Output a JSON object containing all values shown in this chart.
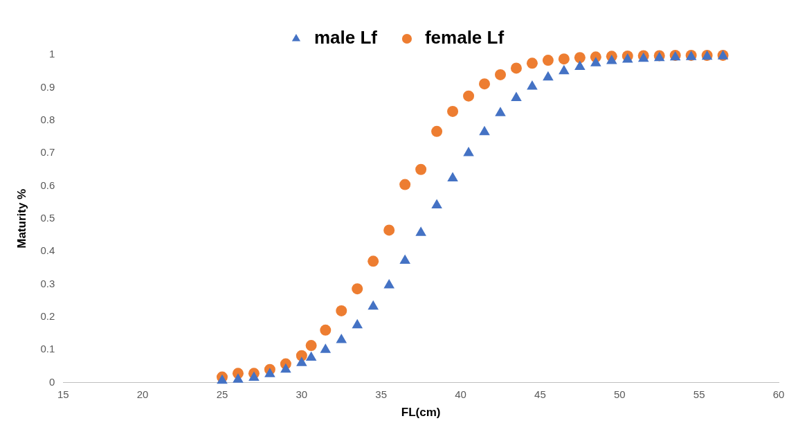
{
  "chart_data": {
    "type": "scatter",
    "xlabel": "FL(cm)",
    "ylabel": "Maturity %",
    "legend": "top",
    "grid": false,
    "xlim": [
      15,
      60
    ],
    "xticks": [
      15,
      20,
      25,
      30,
      35,
      40,
      45,
      50,
      55,
      60
    ],
    "ylim": [
      0,
      1
    ],
    "yticks": [
      0,
      0.1,
      0.2,
      0.3,
      0.4,
      0.5,
      0.6,
      0.7,
      0.8,
      0.9,
      1
    ],
    "x": [
      25,
      26,
      27,
      28,
      29,
      30,
      30.6,
      31.5,
      32.5,
      33.5,
      34.5,
      35.5,
      36.5,
      37.5,
      38.5,
      39.5,
      40.5,
      41.5,
      42.5,
      43.5,
      44.5,
      45.5,
      46.5,
      47.5,
      48.5,
      49.5,
      50.5,
      51.5,
      52.5,
      53.5,
      54.5,
      55.5,
      56.5
    ],
    "series": [
      {
        "name": "male Lf",
        "color": "#4472c4",
        "marker": "triangle",
        "values": [
          0.006,
          0.009,
          0.015,
          0.026,
          0.04,
          0.06,
          0.076,
          0.1,
          0.13,
          0.175,
          0.232,
          0.297,
          0.372,
          0.457,
          0.541,
          0.623,
          0.7,
          0.764,
          0.822,
          0.868,
          0.903,
          0.931,
          0.95,
          0.963,
          0.974,
          0.981,
          0.985,
          0.988,
          0.99,
          0.992,
          0.993,
          0.994,
          0.995
        ]
      },
      {
        "name": "female Lf",
        "color": "#ed7d31",
        "marker": "circle",
        "values": [
          0.017,
          0.028,
          0.028,
          0.04,
          0.057,
          0.082,
          0.113,
          0.16,
          0.219,
          0.286,
          0.37,
          0.465,
          0.604,
          0.65,
          0.766,
          0.827,
          0.874,
          0.911,
          0.939,
          0.959,
          0.974,
          0.983,
          0.987,
          0.991,
          0.993,
          0.995,
          0.996,
          0.997,
          0.997,
          0.998,
          0.998,
          0.998,
          0.998
        ]
      }
    ]
  }
}
